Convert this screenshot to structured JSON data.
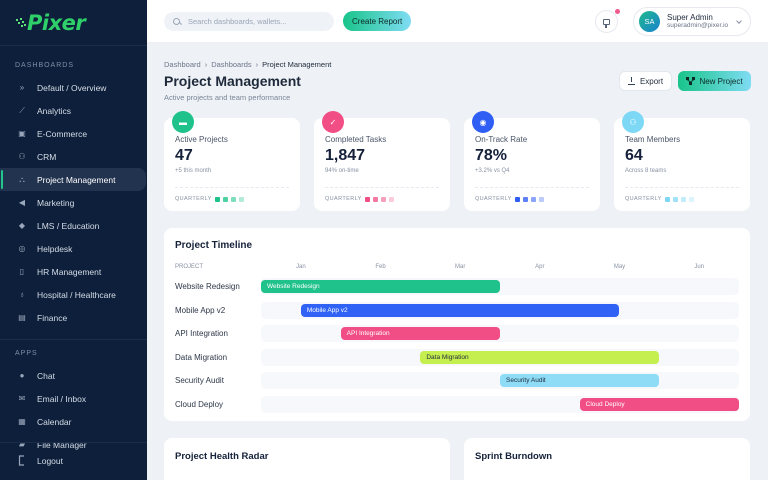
{
  "brand": {
    "name": "Pixer"
  },
  "sidebar": {
    "sections": [
      {
        "label": "DASHBOARDS",
        "items": [
          {
            "label": "Default / Overview",
            "icon": "double-chevron-icon"
          },
          {
            "label": "Analytics",
            "icon": "chart-line-icon"
          },
          {
            "label": "E-Commerce",
            "icon": "shopping-bag-icon"
          },
          {
            "label": "CRM",
            "icon": "users-icon"
          },
          {
            "label": "Project Management",
            "icon": "diagram-icon",
            "active": true
          },
          {
            "label": "Marketing",
            "icon": "megaphone-icon"
          },
          {
            "label": "LMS / Education",
            "icon": "graduation-cap-icon"
          },
          {
            "label": "Helpdesk",
            "icon": "headset-icon"
          },
          {
            "label": "HR Management",
            "icon": "id-badge-icon"
          },
          {
            "label": "Hospital / Healthcare",
            "icon": "stethoscope-icon"
          },
          {
            "label": "Finance",
            "icon": "money-icon"
          }
        ]
      },
      {
        "label": "APPS",
        "items": [
          {
            "label": "Chat",
            "icon": "chat-icon"
          },
          {
            "label": "Email / Inbox",
            "icon": "envelope-icon"
          },
          {
            "label": "Calendar",
            "icon": "calendar-icon"
          },
          {
            "label": "File Manager",
            "icon": "folder-open-icon"
          }
        ]
      }
    ],
    "logout": "Logout"
  },
  "topbar": {
    "search_placeholder": "Search dashboards, wallets...",
    "create_report": "Create Report",
    "user": {
      "initials": "SA",
      "name": "Super Admin",
      "email": "superadmin@pixer.io"
    }
  },
  "header": {
    "breadcrumb": [
      "Dashboard",
      "Dashboards",
      "Project Management"
    ],
    "title": "Project Management",
    "subtitle": "Active projects and team performance",
    "export_label": "Export",
    "new_project_label": "New Project"
  },
  "stats": [
    {
      "label": "Active Projects",
      "value": "47",
      "sub": "+5 this month",
      "foot": "QUARTERLY",
      "color": "#1fc28a",
      "squares": [
        "#1fc28a",
        "#4fd1a2",
        "#7fdebb",
        "#b3ecd6"
      ]
    },
    {
      "label": "Completed Tasks",
      "value": "1,847",
      "sub": "94% on-time",
      "foot": "QUARTERLY",
      "color": "#f04e85",
      "squares": [
        "#f04e85",
        "#f478a2",
        "#f7a0bd",
        "#fbcadb"
      ]
    },
    {
      "label": "On-Track Rate",
      "value": "78%",
      "sub": "+3.2% vs Q4",
      "foot": "QUARTERLY",
      "color": "#2f5ef5",
      "squares": [
        "#2f5ef5",
        "#5d80f7",
        "#8ca4f9",
        "#bccafc"
      ]
    },
    {
      "label": "Team Members",
      "value": "64",
      "sub": "Across 8 teams",
      "foot": "QUARTERLY",
      "color": "#7dd8f6",
      "squares": [
        "#7dd8f6",
        "#a0e3f8",
        "#c1ecfa",
        "#dcf4fc"
      ]
    }
  ],
  "timeline": {
    "title": "Project Timeline",
    "column_header": "PROJECT",
    "months": [
      "Jan",
      "Feb",
      "Mar",
      "Apr",
      "May",
      "Jun"
    ],
    "rows": [
      {
        "name": "Website Redesign",
        "start": 0,
        "end": 3,
        "color": "#1fc28a",
        "text_color": "#ffffff"
      },
      {
        "name": "Mobile App v2",
        "start": 0.5,
        "end": 4.5,
        "color": "#2f62f5",
        "text_color": "#ffffff"
      },
      {
        "name": "API Integration",
        "start": 1,
        "end": 3,
        "color": "#f04e85",
        "text_color": "#ffffff"
      },
      {
        "name": "Data Migration",
        "start": 2,
        "end": 5,
        "color": "#c5ee4f",
        "text_color": "#1e2a3b"
      },
      {
        "name": "Security Audit",
        "start": 3,
        "end": 5,
        "color": "#8fdcf7",
        "text_color": "#1e2a3b"
      },
      {
        "name": "Cloud Deploy",
        "start": 4,
        "end": 6,
        "color": "#f04e85",
        "text_color": "#ffffff"
      }
    ]
  },
  "bottom_cards": [
    {
      "title": "Project Health Radar"
    },
    {
      "title": "Sprint Burndown"
    }
  ]
}
